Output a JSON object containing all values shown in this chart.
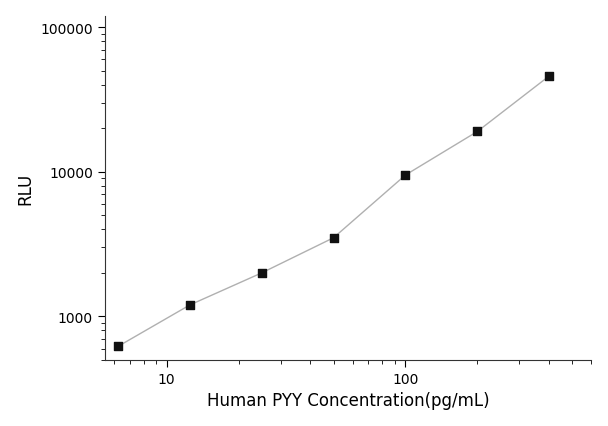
{
  "x": [
    6.25,
    12.5,
    25,
    50,
    100,
    200,
    400
  ],
  "y": [
    620,
    1200,
    2000,
    3500,
    9500,
    19000,
    46000
  ],
  "xlabel": "Human PYY Concentration(pg/mL)",
  "ylabel": "RLU",
  "xlim": [
    5.5,
    600
  ],
  "ylim": [
    500,
    120000
  ],
  "marker": "s",
  "marker_color": "#111111",
  "marker_size": 6,
  "line_color": "#b0b0b0",
  "line_style": "-",
  "line_width": 1.0,
  "background_color": "#ffffff",
  "xlabel_fontsize": 12,
  "ylabel_fontsize": 12,
  "tick_fontsize": 10
}
